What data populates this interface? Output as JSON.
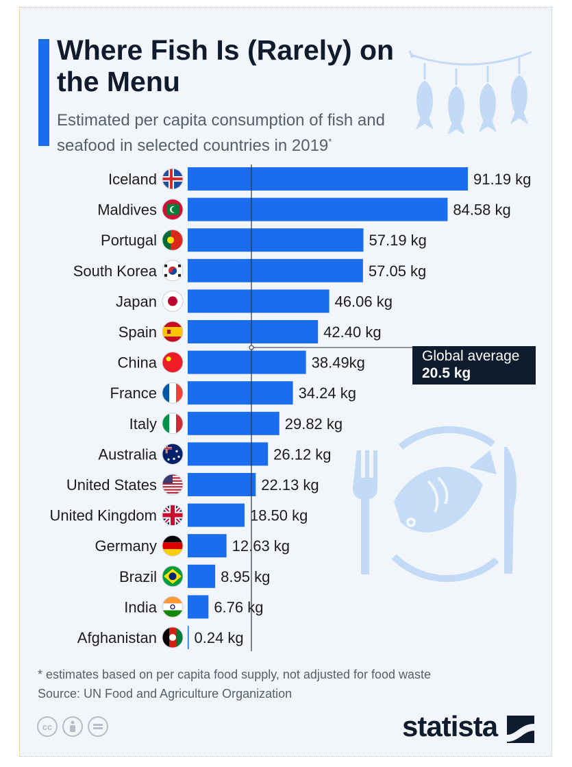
{
  "title": "Where Fish Is (Rarely) on the Menu",
  "subtitle": "Estimated per capita consumption of fish and seafood in selected countries in 2019",
  "subtitle_mark": "*",
  "callout": {
    "line1": "Global average",
    "line2": "20.5 kg"
  },
  "footnote": {
    "note": "* estimates based on per capita food supply, not adjusted for food waste",
    "source": "Source: UN Food and Agriculture Organization"
  },
  "brand": "statista",
  "license_icons": [
    "creative-commons-icon",
    "attribution-icon",
    "no-derivatives-icon"
  ],
  "colors": {
    "bar": "#1a6ded",
    "accent": "#1a6ded",
    "callout_bg": "#0f1c2e",
    "decoration": "#c2daf6"
  },
  "chart_data": {
    "type": "bar",
    "orientation": "horizontal",
    "unit": "kg",
    "categories": [
      "Iceland",
      "Maldives",
      "Portugal",
      "South Korea",
      "Japan",
      "Spain",
      "China",
      "France",
      "Italy",
      "Australia",
      "United States",
      "United Kingdom",
      "Germany",
      "Brazil",
      "India",
      "Afghanistan"
    ],
    "values": [
      91.19,
      84.58,
      57.19,
      57.05,
      46.06,
      42.4,
      38.49,
      34.24,
      29.82,
      26.12,
      22.13,
      18.5,
      12.63,
      8.95,
      6.76,
      0.24
    ],
    "value_labels": [
      "91.19 kg",
      "84.58 kg",
      "57.19 kg",
      "57.05 kg",
      "46.06 kg",
      "42.40 kg",
      "38.49kg",
      "34.24 kg",
      "29.82 kg",
      "26.12 kg",
      "22.13 kg",
      "18.50 kg",
      "12.63 kg",
      "8.95 kg",
      "6.76 kg",
      "0.24 kg"
    ],
    "flags": [
      "iceland-flag-icon",
      "maldives-flag-icon",
      "portugal-flag-icon",
      "south-korea-flag-icon",
      "japan-flag-icon",
      "spain-flag-icon",
      "china-flag-icon",
      "france-flag-icon",
      "italy-flag-icon",
      "australia-flag-icon",
      "united-states-flag-icon",
      "united-kingdom-flag-icon",
      "germany-flag-icon",
      "brazil-flag-icon",
      "india-flag-icon",
      "afghanistan-flag-icon"
    ],
    "reference_line": {
      "value": 20.5
    },
    "xlim": [
      0,
      91.19
    ],
    "grid": false,
    "legend": "none"
  }
}
